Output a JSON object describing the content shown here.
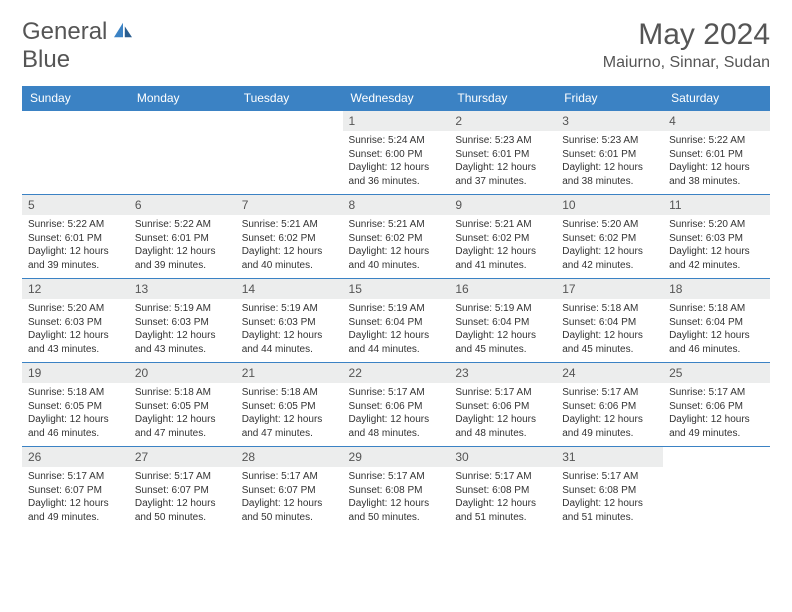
{
  "logo": {
    "textA": "General",
    "textB": "Blue"
  },
  "title": "May 2024",
  "location": "Maiurno, Sinnar, Sudan",
  "colors": {
    "brand": "#3b82c4",
    "grayBg": "#eceded",
    "text": "#333",
    "subtext": "#555"
  },
  "dayNames": [
    "Sunday",
    "Monday",
    "Tuesday",
    "Wednesday",
    "Thursday",
    "Friday",
    "Saturday"
  ],
  "weeks": [
    [
      {
        "empty": true
      },
      {
        "empty": true
      },
      {
        "empty": true
      },
      {
        "n": "1",
        "sr": "5:24 AM",
        "ss": "6:00 PM",
        "dl": "12 hours and 36 minutes."
      },
      {
        "n": "2",
        "sr": "5:23 AM",
        "ss": "6:01 PM",
        "dl": "12 hours and 37 minutes."
      },
      {
        "n": "3",
        "sr": "5:23 AM",
        "ss": "6:01 PM",
        "dl": "12 hours and 38 minutes."
      },
      {
        "n": "4",
        "sr": "5:22 AM",
        "ss": "6:01 PM",
        "dl": "12 hours and 38 minutes."
      }
    ],
    [
      {
        "n": "5",
        "sr": "5:22 AM",
        "ss": "6:01 PM",
        "dl": "12 hours and 39 minutes."
      },
      {
        "n": "6",
        "sr": "5:22 AM",
        "ss": "6:01 PM",
        "dl": "12 hours and 39 minutes."
      },
      {
        "n": "7",
        "sr": "5:21 AM",
        "ss": "6:02 PM",
        "dl": "12 hours and 40 minutes."
      },
      {
        "n": "8",
        "sr": "5:21 AM",
        "ss": "6:02 PM",
        "dl": "12 hours and 40 minutes."
      },
      {
        "n": "9",
        "sr": "5:21 AM",
        "ss": "6:02 PM",
        "dl": "12 hours and 41 minutes."
      },
      {
        "n": "10",
        "sr": "5:20 AM",
        "ss": "6:02 PM",
        "dl": "12 hours and 42 minutes."
      },
      {
        "n": "11",
        "sr": "5:20 AM",
        "ss": "6:03 PM",
        "dl": "12 hours and 42 minutes."
      }
    ],
    [
      {
        "n": "12",
        "sr": "5:20 AM",
        "ss": "6:03 PM",
        "dl": "12 hours and 43 minutes."
      },
      {
        "n": "13",
        "sr": "5:19 AM",
        "ss": "6:03 PM",
        "dl": "12 hours and 43 minutes."
      },
      {
        "n": "14",
        "sr": "5:19 AM",
        "ss": "6:03 PM",
        "dl": "12 hours and 44 minutes."
      },
      {
        "n": "15",
        "sr": "5:19 AM",
        "ss": "6:04 PM",
        "dl": "12 hours and 44 minutes."
      },
      {
        "n": "16",
        "sr": "5:19 AM",
        "ss": "6:04 PM",
        "dl": "12 hours and 45 minutes."
      },
      {
        "n": "17",
        "sr": "5:18 AM",
        "ss": "6:04 PM",
        "dl": "12 hours and 45 minutes."
      },
      {
        "n": "18",
        "sr": "5:18 AM",
        "ss": "6:04 PM",
        "dl": "12 hours and 46 minutes."
      }
    ],
    [
      {
        "n": "19",
        "sr": "5:18 AM",
        "ss": "6:05 PM",
        "dl": "12 hours and 46 minutes."
      },
      {
        "n": "20",
        "sr": "5:18 AM",
        "ss": "6:05 PM",
        "dl": "12 hours and 47 minutes."
      },
      {
        "n": "21",
        "sr": "5:18 AM",
        "ss": "6:05 PM",
        "dl": "12 hours and 47 minutes."
      },
      {
        "n": "22",
        "sr": "5:17 AM",
        "ss": "6:06 PM",
        "dl": "12 hours and 48 minutes."
      },
      {
        "n": "23",
        "sr": "5:17 AM",
        "ss": "6:06 PM",
        "dl": "12 hours and 48 minutes."
      },
      {
        "n": "24",
        "sr": "5:17 AM",
        "ss": "6:06 PM",
        "dl": "12 hours and 49 minutes."
      },
      {
        "n": "25",
        "sr": "5:17 AM",
        "ss": "6:06 PM",
        "dl": "12 hours and 49 minutes."
      }
    ],
    [
      {
        "n": "26",
        "sr": "5:17 AM",
        "ss": "6:07 PM",
        "dl": "12 hours and 49 minutes."
      },
      {
        "n": "27",
        "sr": "5:17 AM",
        "ss": "6:07 PM",
        "dl": "12 hours and 50 minutes."
      },
      {
        "n": "28",
        "sr": "5:17 AM",
        "ss": "6:07 PM",
        "dl": "12 hours and 50 minutes."
      },
      {
        "n": "29",
        "sr": "5:17 AM",
        "ss": "6:08 PM",
        "dl": "12 hours and 50 minutes."
      },
      {
        "n": "30",
        "sr": "5:17 AM",
        "ss": "6:08 PM",
        "dl": "12 hours and 51 minutes."
      },
      {
        "n": "31",
        "sr": "5:17 AM",
        "ss": "6:08 PM",
        "dl": "12 hours and 51 minutes."
      },
      {
        "empty": true
      }
    ]
  ],
  "labels": {
    "sunrise": "Sunrise: ",
    "sunset": "Sunset: ",
    "daylight": "Daylight: "
  }
}
